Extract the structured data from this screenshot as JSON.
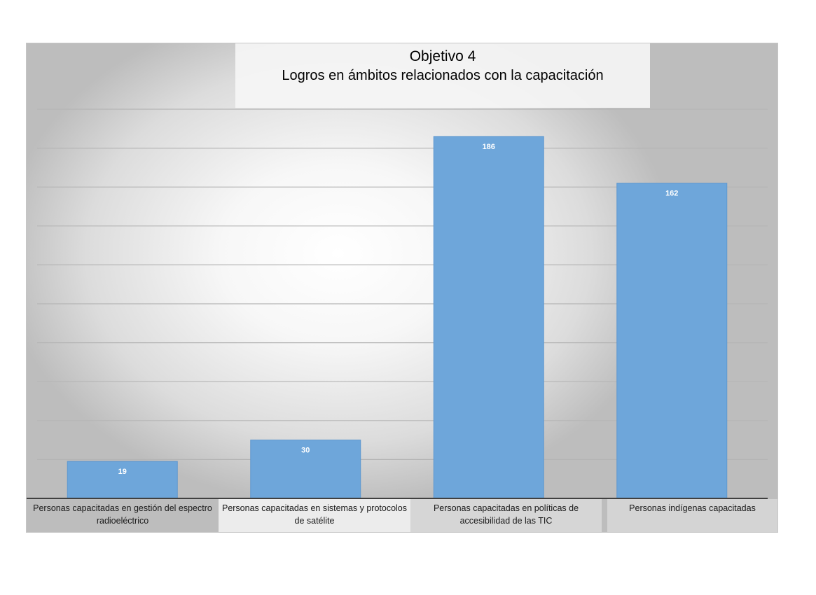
{
  "chart_data": {
    "type": "bar",
    "title": "Objetivo 4",
    "subtitle": "Logros en ámbitos relacionados con la capacitación",
    "categories": [
      "Personas capacitadas en gestión del espectro radioeléctrico",
      "Personas capacitadas en sistemas y protocolos de satélite",
      "Personas capacitadas en políticas de accesibilidad de las TIC",
      "Personas indígenas capacitadas"
    ],
    "values": [
      19,
      30,
      186,
      162
    ],
    "data_labels": [
      "19",
      "30",
      "186",
      "162"
    ],
    "ylim": [
      0,
      200
    ],
    "grid": true,
    "legend": "none",
    "bar_color": "#6ea6da"
  }
}
